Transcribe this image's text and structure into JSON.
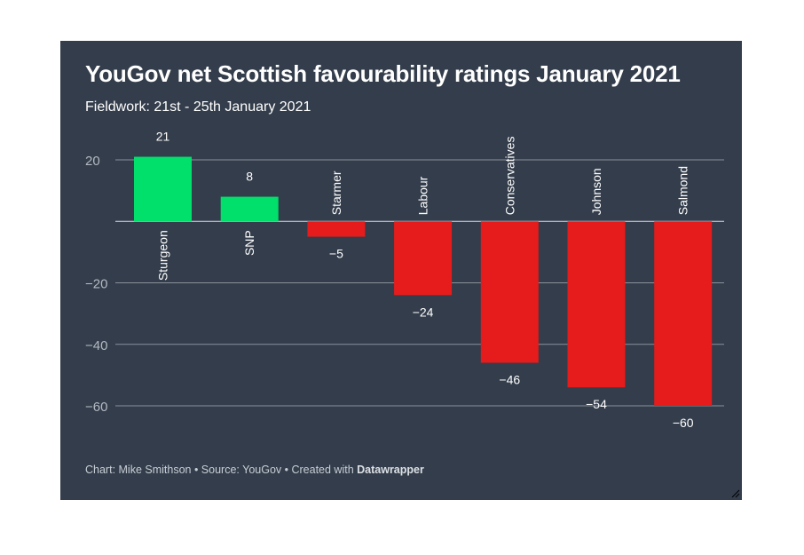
{
  "header": {
    "title": "YouGov net Scottish favourability ratings January 2021",
    "subtitle": "Fieldwork: 21st - 25th January 2021"
  },
  "footer": {
    "prefix": "Chart: Mike Smithson • Source: YouGov • Created with ",
    "brand": "Datawrapper"
  },
  "colors": {
    "background": "#333d4b",
    "positive": "#00e06b",
    "negative": "#e61c1c",
    "grid": "#8a919b",
    "text": "#ffffff",
    "tick": "#b3b9c1"
  },
  "chart_data": {
    "type": "bar",
    "categories": [
      "Sturgeon",
      "SNP",
      "Starmer",
      "Labour",
      "Conservatives",
      "Johnson",
      "Salmond"
    ],
    "values": [
      21,
      8,
      -5,
      -24,
      -46,
      -54,
      -60
    ],
    "value_labels": [
      "21",
      "8",
      "−5",
      "−24",
      "−46",
      "−54",
      "−60"
    ],
    "y_ticks": [
      20,
      0,
      -20,
      -40,
      -60
    ],
    "y_tick_labels": [
      "20",
      "",
      "−20",
      "−40",
      "−60"
    ],
    "ylim": [
      -60,
      20
    ],
    "title": "YouGov net Scottish favourability ratings January 2021",
    "xlabel": "",
    "ylabel": "",
    "grid": true,
    "legend": "none"
  }
}
